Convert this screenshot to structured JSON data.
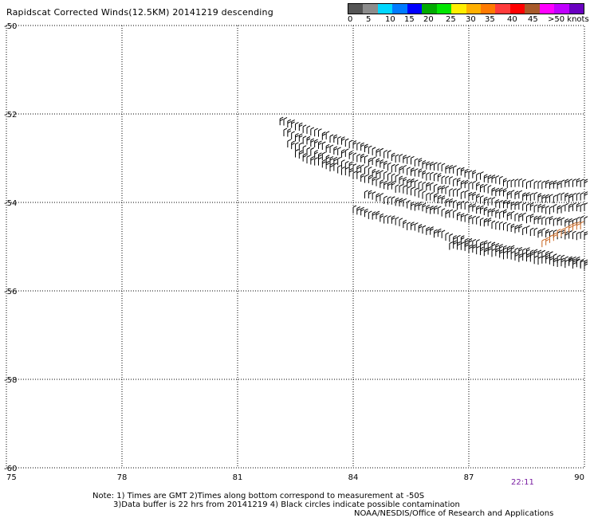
{
  "title": "Rapidscat Corrected Winds(12.5KM) 20141219 descending",
  "legend": {
    "colors": [
      "#555555",
      "#8c8c8c",
      "#00d7ff",
      "#007bff",
      "#0000ff",
      "#00aa00",
      "#00e600",
      "#ffee00",
      "#ffb000",
      "#ff7a00",
      "#ff3b3b",
      "#ff0000",
      "#a85a2a",
      "#ff00ff",
      "#c000ff",
      "#6a00c0"
    ],
    "labels": [
      "0",
      "5",
      "10",
      "15",
      "20",
      "25",
      "30",
      "35",
      "40",
      "45",
      ">50 knots"
    ]
  },
  "chart_data": {
    "type": "scatter",
    "title": "Rapidscat Corrected Winds(12.5KM) 20141219 descending",
    "xlim": [
      75,
      90
    ],
    "ylim": [
      -60,
      -50
    ],
    "x_ticks": [
      "75",
      "78",
      "81",
      "84",
      "87",
      "90"
    ],
    "y_ticks": [
      "-50",
      "-52",
      "-54",
      "-56",
      "-58",
      "-60"
    ],
    "grid": true,
    "symbol": "wind barb",
    "swath_rows": [
      {
        "color": "#000000",
        "points": [
          [
            82.1,
            -52.2
          ],
          [
            83.0,
            -52.45
          ],
          [
            84.0,
            -52.75
          ],
          [
            85.0,
            -53.0
          ],
          [
            86.0,
            -53.2
          ],
          [
            87.0,
            -53.4
          ],
          [
            88.0,
            -53.6
          ],
          [
            89.0,
            -53.65
          ],
          [
            90.0,
            -53.6
          ]
        ]
      },
      {
        "color": "#000000",
        "points": [
          [
            82.2,
            -52.45
          ],
          [
            83.0,
            -52.7
          ],
          [
            84.0,
            -53.0
          ],
          [
            85.0,
            -53.25
          ],
          [
            86.0,
            -53.45
          ],
          [
            87.0,
            -53.65
          ],
          [
            88.0,
            -53.85
          ],
          [
            89.0,
            -53.95
          ],
          [
            90.0,
            -53.9
          ]
        ]
      },
      {
        "color": "#000000",
        "points": [
          [
            82.3,
            -52.7
          ],
          [
            83.0,
            -52.95
          ],
          [
            84.0,
            -53.25
          ],
          [
            85.0,
            -53.5
          ],
          [
            86.0,
            -53.7
          ],
          [
            87.0,
            -53.9
          ],
          [
            88.0,
            -54.1
          ],
          [
            89.0,
            -54.2
          ],
          [
            90.0,
            -54.15
          ]
        ]
      },
      {
        "color": "#000000",
        "points": [
          [
            82.5,
            -52.95
          ],
          [
            83.5,
            -53.25
          ],
          [
            84.5,
            -53.55
          ],
          [
            85.5,
            -53.8
          ],
          [
            86.5,
            -54.05
          ],
          [
            87.5,
            -54.25
          ],
          [
            88.5,
            -54.4
          ],
          [
            89.5,
            -54.5
          ],
          [
            90.0,
            -54.45
          ]
        ]
      },
      {
        "color": "#000000",
        "points": [
          [
            84.3,
            -53.85
          ],
          [
            85.0,
            -54.0
          ],
          [
            86.0,
            -54.2
          ],
          [
            87.0,
            -54.4
          ],
          [
            88.0,
            -54.6
          ],
          [
            89.0,
            -54.75
          ],
          [
            90.0,
            -54.8
          ]
        ]
      },
      {
        "color": "#000000",
        "points": [
          [
            84.0,
            -54.2
          ],
          [
            85.0,
            -54.45
          ],
          [
            86.0,
            -54.7
          ],
          [
            87.0,
            -54.95
          ],
          [
            88.0,
            -55.1
          ],
          [
            89.0,
            -55.25
          ],
          [
            90.0,
            -55.4
          ]
        ]
      },
      {
        "color": "#000000",
        "points": [
          [
            86.5,
            -55.0
          ],
          [
            87.5,
            -55.15
          ],
          [
            88.5,
            -55.3
          ],
          [
            89.5,
            -55.4
          ],
          [
            90.0,
            -55.45
          ]
        ]
      },
      {
        "color": "#c8641e",
        "points": [
          [
            88.9,
            -54.95
          ],
          [
            89.3,
            -54.75
          ],
          [
            89.6,
            -54.6
          ],
          [
            89.95,
            -54.55
          ]
        ]
      }
    ],
    "swath_time": "22:11"
  },
  "note_line1": "Note: 1) Times are GMT 2)Times along bottom correspond to measurement at -50S",
  "note_line2": "3)Data buffer is 22 hrs from 20141219 4) Black circles indicate possible contamination",
  "credit": "NOAA/NESDIS/Office of Research and Applications"
}
